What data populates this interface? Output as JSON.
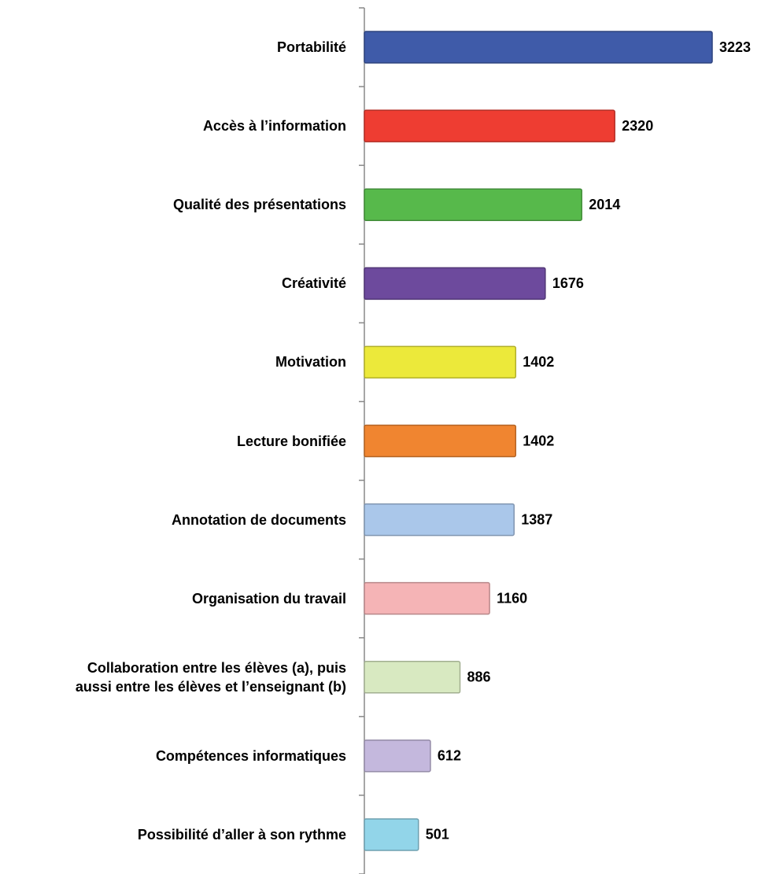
{
  "chart_data": {
    "type": "barh",
    "categories": [
      "Portabilité",
      "Accès à l’information",
      "Qualité des présentations",
      "Créativité",
      "Motivation",
      "Lecture bonifiée",
      "Annotation de documents",
      "Organisation du travail",
      "Collaboration entre les élèves (a), puis\naussi entre les élèves et l’enseignant (b)",
      "Compétences informatiques",
      "Possibilité d’aller à son rythme"
    ],
    "values": [
      3223,
      2320,
      2014,
      1676,
      1402,
      1402,
      1387,
      1160,
      886,
      612,
      501
    ],
    "colors": [
      "#3f5ba9",
      "#ee3d32",
      "#57b94b",
      "#6d4a9d",
      "#ece93a",
      "#f08530",
      "#aac7ea",
      "#f5b4b6",
      "#d8e9c1",
      "#c4b8dd",
      "#92d5e9"
    ],
    "xlim": [
      0,
      3500
    ]
  }
}
